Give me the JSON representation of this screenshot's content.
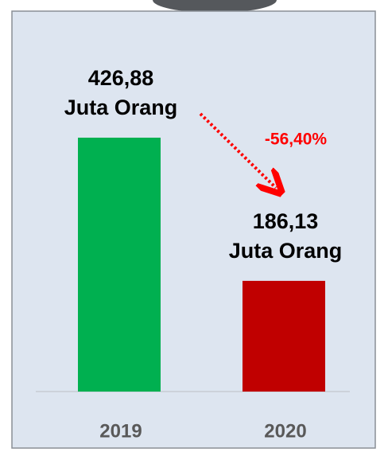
{
  "chart_data": {
    "type": "bar",
    "categories": [
      "2019",
      "2020"
    ],
    "values": [
      426.88,
      186.13
    ],
    "value_labels": [
      "426,88",
      "186,13"
    ],
    "unit_label": "Juta Orang",
    "colors": [
      "#00b050",
      "#c00000"
    ],
    "annotation": "-56,40%"
  }
}
